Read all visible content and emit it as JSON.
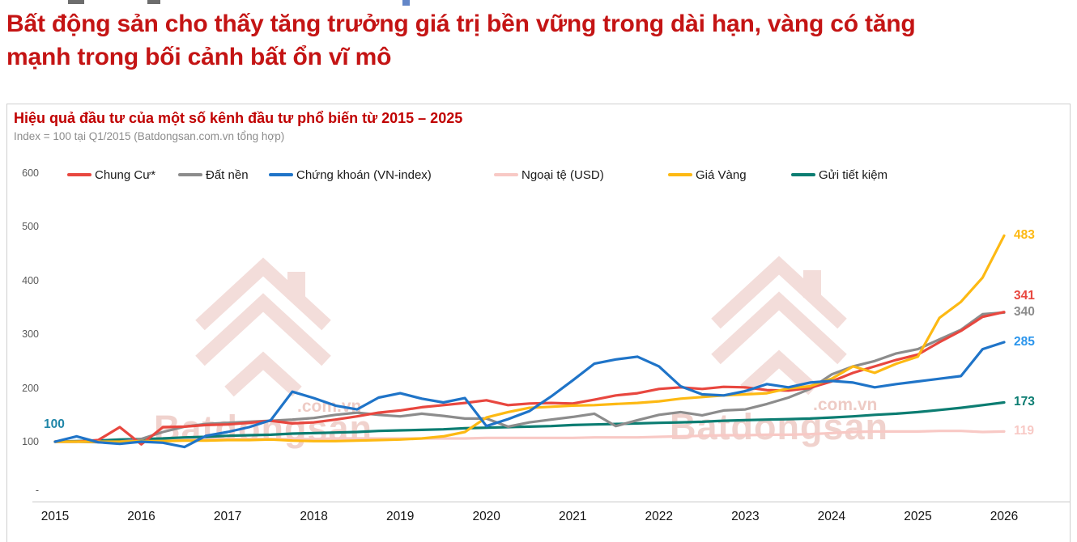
{
  "page": {
    "headline": "Bất động sản cho thấy tăng trưởng giá trị bền vững trong dài hạn, vàng có tăng mạnh trong bối cảnh bất ổn vĩ mô"
  },
  "watermark": {
    "brand": "Batdongsan",
    "suffix": ".com.vn"
  },
  "chart_data": {
    "type": "line",
    "title": "Hiệu quả đầu tư của một số kênh đầu tư phổ biến từ 2015 – 2025",
    "subtitle": "Index = 100 tại Q1/2015 (Batdongsan.com.vn tổng hợp)",
    "xlabel": "",
    "ylabel": "",
    "grid": false,
    "legend_position": "top",
    "x_frequency": "quarterly",
    "x_start": "Q1/2015",
    "x_end": "Q1/2026",
    "x_ticks": [
      "2015",
      "2016",
      "2017",
      "2018",
      "2019",
      "2020",
      "2021",
      "2022",
      "2023",
      "2024",
      "2025",
      "2026"
    ],
    "y_ticks": [
      "600",
      "500",
      "400",
      "300",
      "200",
      "100",
      "-"
    ],
    "ylim": [
      0,
      600
    ],
    "start_label": {
      "text": "100",
      "color": "#1f86a8"
    },
    "series": [
      {
        "name": "Chung Cư*",
        "color": "#e8473f",
        "end_label": "341",
        "values": [
          100,
          100,
          103,
          127,
          95,
          127,
          128,
          131,
          132,
          135,
          139,
          134,
          136,
          141,
          147,
          154,
          158,
          164,
          168,
          172,
          177,
          168,
          171,
          172,
          171,
          178,
          186,
          190,
          198,
          201,
          198,
          202,
          201,
          196,
          195,
          200,
          212,
          228,
          240,
          252,
          262,
          285,
          306,
          332,
          341
        ]
      },
      {
        "name": "Đất nền",
        "color": "#8c8c8c",
        "end_label": "340",
        "values": [
          100,
          100,
          99,
          100,
          105,
          118,
          128,
          133,
          135,
          137,
          139,
          141,
          144,
          150,
          154,
          150,
          147,
          152,
          148,
          143,
          143,
          128,
          136,
          141,
          146,
          152,
          129,
          140,
          150,
          155,
          149,
          158,
          160,
          170,
          182,
          198,
          225,
          240,
          250,
          264,
          272,
          290,
          308,
          337,
          340
        ]
      },
      {
        "name": "Chứng khoán (VN-index)",
        "color": "#1f74c8",
        "label_color": "#2b95ec",
        "end_label": "285",
        "values": [
          100,
          110,
          99,
          96,
          100,
          98,
          90,
          111,
          118,
          127,
          140,
          193,
          181,
          167,
          160,
          182,
          190,
          180,
          173,
          181,
          129,
          142,
          157,
          184,
          214,
          245,
          253,
          258,
          240,
          203,
          188,
          186,
          194,
          207,
          201,
          210,
          213,
          210,
          201,
          207,
          212,
          217,
          222,
          272,
          285
        ]
      },
      {
        "name": "Ngoại tệ (USD)",
        "color": "#f8c9c5",
        "end_label": "119",
        "values": [
          100,
          101,
          102,
          104,
          104,
          104,
          105,
          105,
          105,
          105,
          105,
          105,
          105,
          106,
          106,
          106,
          106,
          106,
          106,
          106,
          107,
          107,
          107,
          107,
          107,
          108,
          108,
          108,
          109,
          110,
          111,
          112,
          112,
          113,
          113,
          114,
          116,
          118,
          119,
          119,
          119,
          120,
          120,
          118,
          119
        ]
      },
      {
        "name": "Giá Vàng",
        "color": "#fdb913",
        "end_label": "483",
        "values": [
          100,
          100,
          100,
          100,
          101,
          101,
          102,
          102,
          103,
          103,
          104,
          102,
          101,
          101,
          102,
          103,
          104,
          106,
          110,
          118,
          145,
          155,
          163,
          165,
          167,
          168,
          170,
          172,
          175,
          180,
          183,
          186,
          188,
          190,
          199,
          203,
          217,
          240,
          228,
          245,
          258,
          330,
          360,
          405,
          483
        ]
      },
      {
        "name": "Gửi tiết kiệm",
        "color": "#0c7d72",
        "end_label": "173",
        "values": [
          100,
          101,
          102,
          104,
          105,
          106,
          108,
          109,
          111,
          112,
          113,
          115,
          116,
          117,
          118,
          120,
          121,
          122,
          123,
          125,
          126,
          127,
          128,
          129,
          131,
          132,
          133,
          134,
          135,
          136,
          137,
          139,
          140,
          141,
          142,
          143,
          145,
          147,
          150,
          152,
          155,
          159,
          163,
          168,
          173
        ]
      }
    ]
  }
}
